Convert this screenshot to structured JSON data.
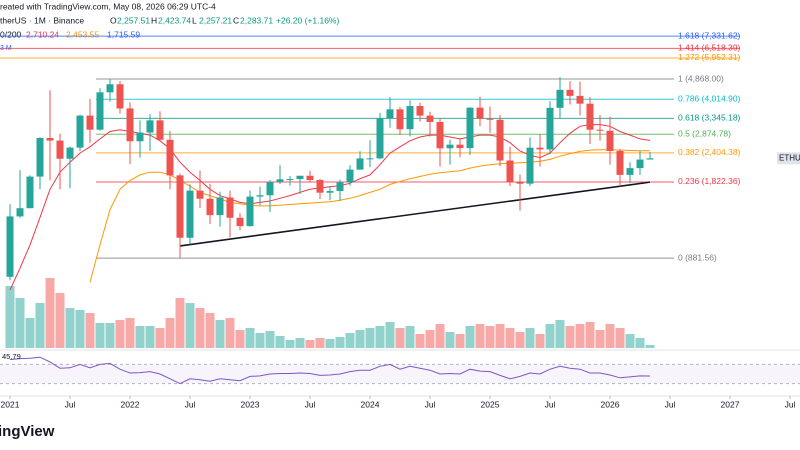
{
  "header": {
    "credit": "reated with TradingView.com, May 08, 2026 06:29 UTC-4",
    "symbol": "therUS · 1M · Binance",
    "ohlc": [
      {
        "key": "O",
        "text": "2,257.51"
      },
      {
        "key": "H",
        "text": "2,423.74"
      },
      {
        "key": "L",
        "text": "2,257.21"
      },
      {
        "key": "C",
        "text": "2,283.71"
      }
    ],
    "change": "+26.20 (+1.16%)",
    "ma_label": "0/200",
    "ma_values": [
      "2,710.24",
      "2,453.55",
      "1,715.59"
    ],
    "volume_label": "3 M"
  },
  "chart_data": {
    "type": "candlestick",
    "x": [
      "2021-01",
      "2021-02",
      "2021-03",
      "2021-04",
      "2021-05",
      "2021-06",
      "2021-07",
      "2021-08",
      "2021-09",
      "2021-10",
      "2021-11",
      "2021-12",
      "2022-01",
      "2022-02",
      "2022-03",
      "2022-04",
      "2022-05",
      "2022-06",
      "2022-07",
      "2022-08",
      "2022-09",
      "2022-10",
      "2022-11",
      "2022-12",
      "2023-01",
      "2023-02",
      "2023-03",
      "2023-04",
      "2023-05",
      "2023-06",
      "2023-07",
      "2023-08",
      "2023-09",
      "2023-10",
      "2023-11",
      "2023-12",
      "2024-01",
      "2024-02",
      "2024-03",
      "2024-04",
      "2024-05",
      "2024-06",
      "2024-07",
      "2024-08",
      "2024-09",
      "2024-10",
      "2024-11",
      "2024-12",
      "2025-01",
      "2025-02",
      "2025-03",
      "2025-04",
      "2025-05",
      "2025-06",
      "2025-07",
      "2025-08",
      "2025-09",
      "2025-10",
      "2025-11",
      "2025-12",
      "2026-01",
      "2026-02",
      "2026-03",
      "2026-04",
      "2026-05"
    ],
    "open": [
      737,
      1312,
      1419,
      1918,
      2773,
      2706,
      2275,
      2530,
      3433,
      3001,
      4288,
      4631,
      3676,
      2688,
      2920,
      3281,
      2726,
      1941,
      1070,
      1678,
      1553,
      1328,
      1572,
      1295,
      1196,
      1585,
      1605,
      1822,
      1869,
      1874,
      1934,
      1857,
      1645,
      1671,
      1815,
      2051,
      2282,
      2283,
      3340,
      3645,
      3015,
      3762,
      3433,
      3232,
      2513,
      2602,
      2518,
      3704,
      3332,
      3300,
      2237,
      1822,
      1793,
      2528,
      2486,
      3698,
      4391,
      4145,
      3847,
      3000,
      2970,
      2450,
      1950,
      2080,
      2257.51
    ],
    "high": [
      1475,
      2040,
      1943,
      2797,
      4372,
      2890,
      2550,
      3470,
      4027,
      4460,
      4868,
      4778,
      3900,
      3282,
      3480,
      3580,
      2960,
      1973,
      1785,
      2030,
      1790,
      1663,
      1680,
      1353,
      1680,
      1743,
      1857,
      2141,
      1929,
      1930,
      2029,
      1876,
      1754,
      1865,
      2138,
      2445,
      2717,
      3522,
      4093,
      3730,
      3977,
      3887,
      3563,
      3350,
      2728,
      2770,
      3720,
      4107,
      3744,
      3450,
      2550,
      1957,
      2788,
      2880,
      3941,
      4956,
      4770,
      4755,
      4100,
      3450,
      3400,
      2500,
      2200,
      2450,
      2423.74
    ],
    "low": [
      714,
      1293,
      1418,
      1700,
      1850,
      1700,
      1718,
      2450,
      2650,
      2970,
      3920,
      3500,
      2159,
      2300,
      2450,
      2700,
      1700,
      881.56,
      1006,
      1422,
      1220,
      1190,
      1073,
      1150,
      1190,
      1460,
      1368,
      1785,
      1760,
      1626,
      1823,
      1550,
      1531,
      1521,
      1763,
      2048,
      2100,
      2265,
      3056,
      2852,
      2817,
      3240,
      2810,
      2111,
      2150,
      2308,
      2357,
      3100,
      2920,
      2120,
      1754,
      1385,
      1752,
      2112,
      2373,
      3355,
      3815,
      3435,
      2623,
      2700,
      2150,
      1750,
      1800,
      1950,
      2257.21
    ],
    "close": [
      1312,
      1419,
      1918,
      2773,
      2706,
      2275,
      2530,
      3433,
      3001,
      4288,
      4631,
      3676,
      2688,
      2920,
      3281,
      2726,
      1941,
      1070,
      1678,
      1553,
      1328,
      1572,
      1295,
      1196,
      1585,
      1605,
      1822,
      1869,
      1874,
      1934,
      1857,
      1645,
      1671,
      1815,
      2051,
      2282,
      2283,
      3340,
      3645,
      3015,
      3762,
      3433,
      3232,
      2513,
      2602,
      2518,
      3704,
      3332,
      3300,
      2237,
      1822,
      1793,
      2528,
      2486,
      3698,
      4391,
      4145,
      3847,
      3000,
      2970,
      2450,
      1950,
      2080,
      2257.51,
      2283.71
    ],
    "ylim": [
      650,
      8550
    ],
    "log_scale": true,
    "up_color": "#26a69a",
    "down_color": "#ef5350",
    "xlim": [
      "2020-12",
      "2027-08"
    ],
    "xticks": [
      {
        "value": "2021-01",
        "label": "2021"
      },
      {
        "value": "2021-07",
        "label": "Jul"
      },
      {
        "value": "2022-01",
        "label": "2022"
      },
      {
        "value": "2022-07",
        "label": "Jul"
      },
      {
        "value": "2023-01",
        "label": "2023"
      },
      {
        "value": "2023-07",
        "label": "Jul"
      },
      {
        "value": "2024-01",
        "label": "2024"
      },
      {
        "value": "2024-07",
        "label": "Jul"
      },
      {
        "value": "2025-01",
        "label": "2025"
      },
      {
        "value": "2025-07",
        "label": "Jul"
      },
      {
        "value": "2026-01",
        "label": "2026"
      },
      {
        "value": "2026-07",
        "label": "Jul"
      },
      {
        "value": "2027-01",
        "label": "2027"
      },
      {
        "value": "2027-07",
        "label": "Jul"
      }
    ],
    "moving_averages": [
      {
        "color": "#f23645",
        "values": [
          650,
          800,
          1000,
          1300,
          1700,
          2000,
          2200,
          2400,
          2550,
          2750,
          2950,
          3000,
          2950,
          2900,
          2850,
          2700,
          2500,
          2200,
          2000,
          1850,
          1700,
          1600,
          1550,
          1500,
          1480,
          1500,
          1520,
          1560,
          1600,
          1650,
          1700,
          1720,
          1740,
          1760,
          1800,
          1880,
          1950,
          2150,
          2400,
          2550,
          2700,
          2800,
          2850,
          2850,
          2800,
          2750,
          2800,
          2850,
          2850,
          2800,
          2650,
          2450,
          2350,
          2300,
          2400,
          2650,
          2900,
          3100,
          3150,
          3150,
          3100,
          2950,
          2850,
          2750,
          2710.24
        ]
      },
      {
        "color": "#ff9800",
        "values": [
          null,
          null,
          null,
          null,
          null,
          null,
          null,
          null,
          700,
          1000,
          1400,
          1700,
          1850,
          1950,
          2000,
          2000,
          1950,
          1850,
          1750,
          1650,
          1600,
          1550,
          1500,
          1480,
          1460,
          1450,
          1450,
          1460,
          1470,
          1480,
          1490,
          1500,
          1510,
          1530,
          1560,
          1600,
          1650,
          1700,
          1780,
          1830,
          1880,
          1920,
          1960,
          1990,
          2010,
          2030,
          2080,
          2120,
          2150,
          2170,
          2180,
          2190,
          2200,
          2220,
          2260,
          2330,
          2390,
          2440,
          2470,
          2480,
          2480,
          2470,
          2460,
          2455,
          2453.55
        ]
      }
    ],
    "fib_levels": [
      {
        "value": 7331.62,
        "label": "1.618 (7,331.62)",
        "color": "#2962ff"
      },
      {
        "value": 6518.39,
        "label": "1.414 (6,518.39)",
        "color": "#f23645"
      },
      {
        "value": 5952.31,
        "label": "1.272 (5,952.31)",
        "color": "#ff9800"
      },
      {
        "value": 4868.0,
        "label": "1 (4,868.00)",
        "color": "#787b86"
      },
      {
        "value": 4014.9,
        "label": "0.786 (4,014.90)",
        "color": "#00bcd4"
      },
      {
        "value": 3345.18,
        "label": "0.618 (3,345.18)",
        "color": "#089981"
      },
      {
        "value": 2874.78,
        "label": "0.5 (2,874.78)",
        "color": "#4caf50"
      },
      {
        "value": 2404.38,
        "label": "0.382 (2,404.38)",
        "color": "#ff9800"
      },
      {
        "value": 1822.36,
        "label": "0.236 (1,822.36)",
        "color": "#f23645"
      },
      {
        "value": 881.56,
        "label": "0 (881.56)",
        "color": "#787b86"
      }
    ],
    "trendline": {
      "x": [
        "2022-06",
        "2026-05"
      ],
      "values": [
        990,
        1820
      ],
      "color": "#131722"
    },
    "volume": {
      "ylim": [
        0,
        100
      ],
      "values": [
        62,
        50,
        30,
        45,
        70,
        55,
        40,
        38,
        35,
        25,
        25,
        28,
        30,
        22,
        22,
        20,
        30,
        50,
        45,
        40,
        35,
        28,
        30,
        18,
        20,
        15,
        17,
        12,
        8,
        10,
        8,
        10,
        9,
        11,
        15,
        18,
        20,
        22,
        26,
        20,
        22,
        14,
        18,
        24,
        16,
        14,
        22,
        24,
        22,
        24,
        20,
        16,
        20,
        14,
        24,
        28,
        22,
        24,
        26,
        18,
        24,
        20,
        14,
        10,
        3
      ]
    },
    "rsi": {
      "ylim": [
        0,
        100
      ],
      "bands": [
        70,
        30
      ],
      "label": "45.79",
      "color": "#7e57c2",
      "values": [
        80,
        82,
        83,
        85,
        75,
        62,
        63,
        70,
        63,
        70,
        72,
        60,
        52,
        53,
        55,
        50,
        40,
        30,
        40,
        38,
        35,
        40,
        38,
        36,
        45,
        46,
        50,
        51,
        51,
        52,
        51,
        47,
        48,
        50,
        55,
        58,
        58,
        66,
        70,
        60,
        66,
        62,
        58,
        50,
        51,
        50,
        60,
        56,
        55,
        47,
        40,
        45,
        52,
        50,
        60,
        66,
        62,
        60,
        52,
        52,
        48,
        42,
        44,
        46,
        45.79
      ]
    },
    "price_tag": "ETHUS",
    "logo": "ingView"
  }
}
